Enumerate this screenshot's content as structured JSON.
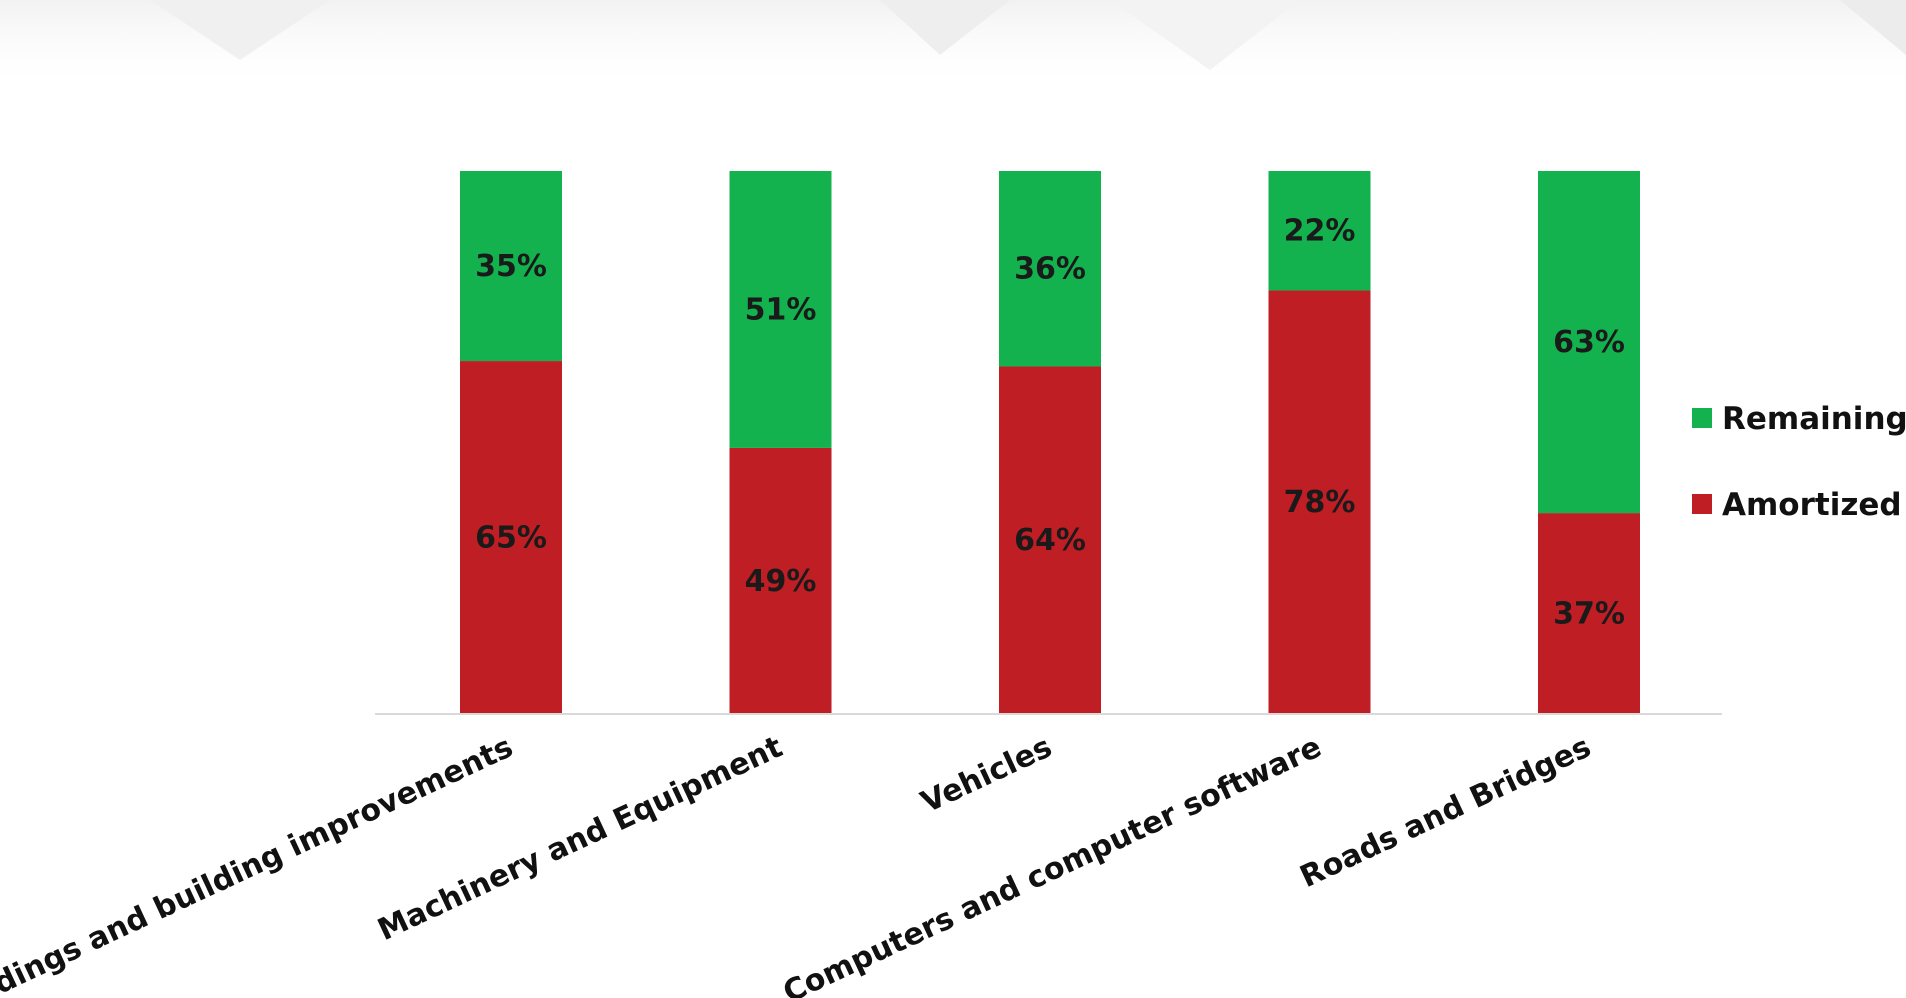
{
  "chart_data": {
    "type": "bar",
    "stacked": true,
    "categories": [
      "Buildings and building improvements",
      "Machinery and Equipment",
      "Vehicles",
      "Computers and computer software",
      "Roads and Bridges"
    ],
    "series": [
      {
        "name": "Amortized",
        "values": [
          65,
          49,
          64,
          78,
          37
        ],
        "labels": [
          "65%",
          "49%",
          "64%",
          "78%",
          "37%"
        ],
        "color": "#be1e24"
      },
      {
        "name": "Remaining",
        "values": [
          35,
          51,
          36,
          22,
          63
        ],
        "labels": [
          "35%",
          "51%",
          "36%",
          "22%",
          "63%"
        ],
        "color": "#13b24f"
      }
    ],
    "ylim": [
      0,
      100
    ],
    "unit": "%",
    "grid": false,
    "legend_position": "right",
    "legend_order": [
      "Remaining",
      "Amortized"
    ]
  }
}
